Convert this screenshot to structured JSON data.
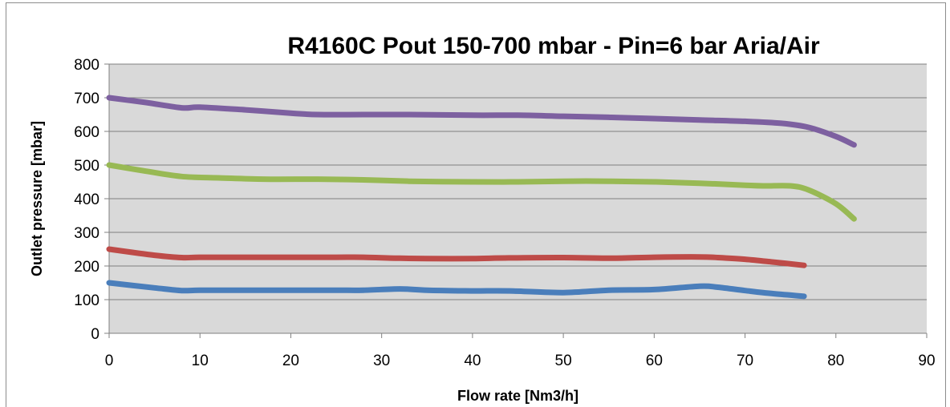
{
  "chart_data": {
    "type": "line",
    "title": "R4160C Pout 150-700 mbar - Pin=6 bar Aria/Air",
    "xlabel": "Flow rate [Nm3/h]",
    "ylabel": "Outlet pressure [mbar]",
    "xlim": [
      0,
      90
    ],
    "ylim": [
      0,
      800
    ],
    "xticks": [
      "0",
      "10",
      "20",
      "30",
      "40",
      "50",
      "60",
      "70",
      "80",
      "90"
    ],
    "yticks": [
      "0",
      "100",
      "200",
      "300",
      "400",
      "500",
      "600",
      "700",
      "800"
    ],
    "grid": true,
    "legend": "none",
    "plot_background": "#d9d9d9",
    "series": [
      {
        "color": "#4a7ebb",
        "x": [
          0,
          5,
          8,
          10,
          15,
          20,
          25,
          28,
          32,
          35,
          40,
          44,
          50,
          55,
          60,
          65,
          67,
          70,
          73,
          76.5
        ],
        "y": [
          150,
          135,
          127,
          128,
          128,
          128,
          128,
          128,
          132,
          128,
          126,
          126,
          121,
          128,
          130,
          140,
          137,
          127,
          118,
          110
        ]
      },
      {
        "color": "#be4b48",
        "x": [
          0,
          5,
          8,
          10,
          15,
          20,
          25,
          28,
          32,
          35,
          40,
          44,
          50,
          55,
          60,
          65,
          67,
          70,
          73,
          76.5
        ],
        "y": [
          250,
          232,
          225,
          226,
          226,
          226,
          226,
          226,
          223,
          222,
          222,
          224,
          225,
          223,
          226,
          227,
          225,
          220,
          212,
          202
        ]
      },
      {
        "color": "#98b954",
        "x": [
          0,
          4,
          8,
          12,
          17,
          23,
          28,
          33,
          40,
          45,
          50,
          55,
          60,
          65,
          70,
          72,
          75,
          77,
          80,
          82
        ],
        "y": [
          500,
          482,
          466,
          462,
          458,
          458,
          456,
          452,
          450,
          450,
          452,
          452,
          450,
          446,
          440,
          438,
          438,
          426,
          385,
          340
        ]
      },
      {
        "color": "#7d60a0",
        "x": [
          0,
          4,
          8,
          10,
          15,
          20,
          23,
          28,
          33,
          40,
          45,
          50,
          55,
          60,
          65,
          70,
          74,
          77,
          80,
          82
        ],
        "y": [
          700,
          686,
          670,
          672,
          664,
          654,
          650,
          650,
          650,
          648,
          648,
          645,
          642,
          638,
          634,
          630,
          624,
          612,
          585,
          560
        ]
      }
    ]
  }
}
